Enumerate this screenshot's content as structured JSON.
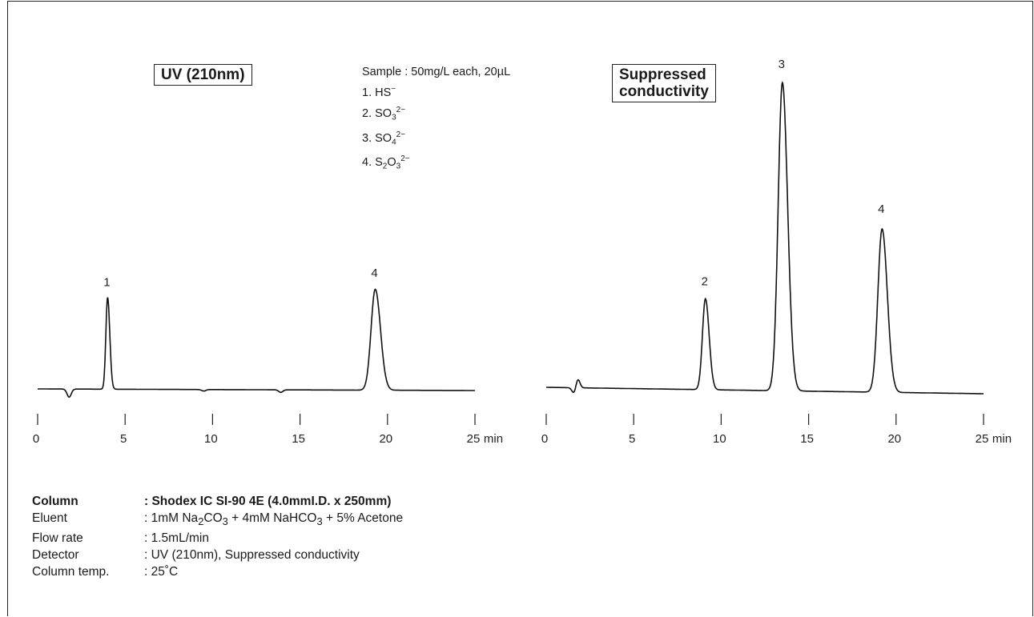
{
  "chart_data": [
    {
      "type": "line",
      "title": "UV (210nm)",
      "xlabel": "min",
      "xlim": [
        0,
        25
      ],
      "x_ticks": [
        0,
        5,
        10,
        15,
        20,
        25
      ],
      "baseline": 0,
      "noise": [
        {
          "x": 1.8,
          "y": -0.08
        },
        {
          "x": 9.5,
          "y": -0.015
        },
        {
          "x": 13.9,
          "y": -0.025
        }
      ],
      "peaks": [
        {
          "label": "1",
          "x": 4.0,
          "y": 0.91
        },
        {
          "label": "4",
          "x": 19.3,
          "y": 1.0
        }
      ]
    },
    {
      "type": "line",
      "title": "Suppressed\nconductivity",
      "xlabel": "min",
      "xlim": [
        0,
        25
      ],
      "x_ticks": [
        0,
        5,
        10,
        15,
        20,
        25
      ],
      "baseline": 0,
      "noise": [
        {
          "x": 1.6,
          "y": -0.02
        },
        {
          "x": 1.8,
          "y": 0.03
        }
      ],
      "peaks": [
        {
          "label": "2",
          "x": 9.1,
          "y": 0.295
        },
        {
          "label": "3",
          "x": 13.5,
          "y": 1.0
        },
        {
          "label": "4",
          "x": 19.2,
          "y": 0.53
        }
      ]
    }
  ],
  "labels": {
    "uv": "UV (210nm)",
    "cond_line1": "Suppressed",
    "cond_line2": "conductivity"
  },
  "sample": {
    "header": "Sample : 50mg/L each, 20µL",
    "items": [
      {
        "num": "1. ",
        "parts": [
          [
            "t",
            "HS"
          ],
          [
            "sup",
            "−"
          ]
        ]
      },
      {
        "num": "2. ",
        "parts": [
          [
            "t",
            "SO"
          ],
          [
            "sub",
            "3"
          ],
          [
            "sup",
            "2−"
          ]
        ]
      },
      {
        "num": "3. ",
        "parts": [
          [
            "t",
            "SO"
          ],
          [
            "sub",
            "4"
          ],
          [
            "sup",
            "2−"
          ]
        ]
      },
      {
        "num": "4. ",
        "parts": [
          [
            "t",
            "S"
          ],
          [
            "sub",
            "2"
          ],
          [
            "t",
            "O"
          ],
          [
            "sub",
            "3"
          ],
          [
            "sup",
            "2−"
          ]
        ]
      }
    ]
  },
  "conditions": [
    {
      "key": "Column",
      "bold": true,
      "parts": [
        [
          "t",
          ": Shodex IC SI-90 4E (4.0mmI.D. x 250mm)"
        ]
      ]
    },
    {
      "key": "Eluent",
      "bold": false,
      "parts": [
        [
          "t",
          ": 1mM Na"
        ],
        [
          "sub",
          "2"
        ],
        [
          "t",
          "CO"
        ],
        [
          "sub",
          "3"
        ],
        [
          "t",
          " + 4mM NaHCO"
        ],
        [
          "sub",
          "3"
        ],
        [
          "t",
          " + 5% Acetone"
        ]
      ]
    },
    {
      "key": "Flow rate",
      "bold": false,
      "parts": [
        [
          "t",
          ": 1.5mL/min"
        ]
      ]
    },
    {
      "key": "Detector",
      "bold": false,
      "parts": [
        [
          "t",
          ": UV (210nm), Suppressed conductivity"
        ]
      ]
    },
    {
      "key": "Column temp.",
      "bold": false,
      "parts": [
        [
          "t",
          ": 25˚C"
        ]
      ]
    }
  ]
}
